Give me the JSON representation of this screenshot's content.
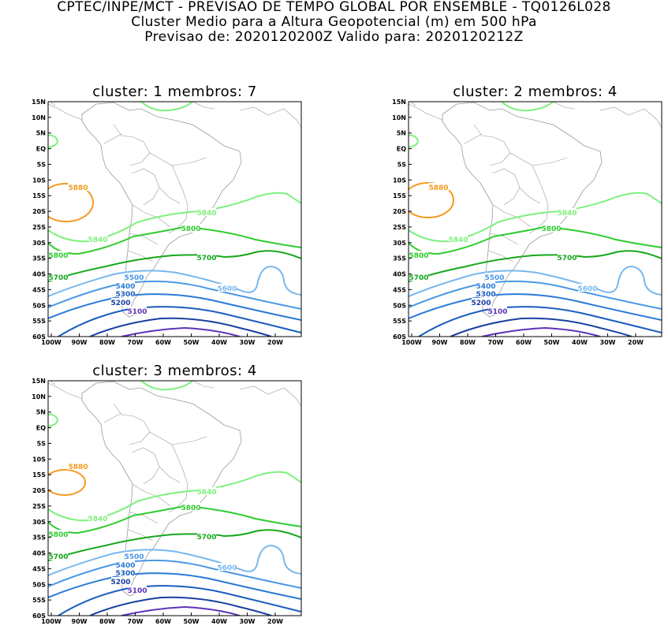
{
  "header": {
    "line1": "CPTEC/INPE/MCT - PREVISAO DE TEMPO GLOBAL POR ENSEMBLE - TQ0126L028",
    "line2": "Cluster Medio para a Altura Geopotencial (m) em 500 hPa",
    "line3": "Previsao de: 2020120200Z    Valido para: 2020120212Z"
  },
  "axes": {
    "lat_labels": [
      "15N",
      "10N",
      "5N",
      "EQ",
      "5S",
      "10S",
      "15S",
      "20S",
      "25S",
      "30S",
      "35S",
      "40S",
      "45S",
      "50S",
      "55S",
      "60S"
    ],
    "lon_labels": [
      "100W",
      "90W",
      "80W",
      "70W",
      "60W",
      "50W",
      "40W",
      "30W",
      "20W"
    ]
  },
  "colors": {
    "c5880": "#f59a1e",
    "c5840": "#7ef07e",
    "c5800": "#2ecc2e",
    "c5700": "#16a81c",
    "c5600": "#78b8ee",
    "c5500": "#4a98e6",
    "c5400": "#2a7ad8",
    "c5300": "#1a5cc0",
    "c5200": "#1840a0",
    "c5100": "#5a34b8",
    "map": "#9a9a9a"
  },
  "panels": [
    {
      "title": "cluster: 1   membros: 7",
      "labels": {
        "l5880": "5880",
        "l5840a": "5840",
        "l5840b": "5840",
        "l5800a": "5800",
        "l5800b": "5800",
        "l5700a": "5700",
        "l5700b": "5700",
        "l5600": "5600",
        "l5500": "5500",
        "l5400": "5400",
        "l5300": "5300",
        "l5200": "5200",
        "l5100": "5100"
      }
    },
    {
      "title": "cluster: 2   membros: 4",
      "labels": {
        "l5880": "5880",
        "l5840a": "5840",
        "l5840b": "5840",
        "l5800a": "5800",
        "l5800b": "5800",
        "l5700a": "5700",
        "l5700b": "5700",
        "l5600": "5600",
        "l5500": "5500",
        "l5400": "5400",
        "l5300": "5300",
        "l5200": "5200",
        "l5100": "5100"
      }
    },
    {
      "title": "cluster: 3   membros: 4",
      "labels": {
        "l5880": "5880",
        "l5840a": "5840",
        "l5840b": "5840",
        "l5800a": "5800",
        "l5800b": "5800",
        "l5700a": "5700",
        "l5700b": "5700",
        "l5600": "5600",
        "l5500": "5500",
        "l5400": "5400",
        "l5300": "5300",
        "l5200": "5200",
        "l5100": "5100"
      }
    }
  ]
}
